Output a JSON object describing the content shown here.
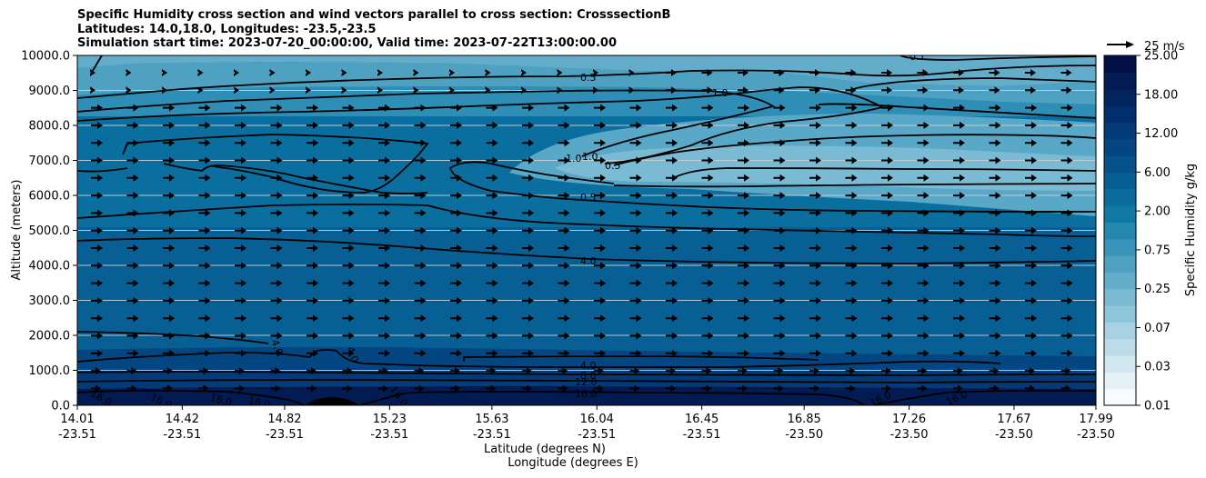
{
  "chart_data": {
    "type": "heatmap",
    "title_lines": [
      "Specific Humidity cross section and wind vectors parallel to cross section: CrosssectionB",
      "Latitudes: 14.0,18.0, Longitudes: -23.5,-23.5",
      "Simulation start time: 2023-07-20_00:00:00, Valid time: 2023-07-22T13:00:00.00"
    ],
    "ylabel": "Altitude (meters)",
    "xlabel_lines": [
      "Latitude (degrees N)",
      "Longitude (degrees E)"
    ],
    "ylim": [
      0,
      10000
    ],
    "y_ticks": [
      "0.0",
      "1000.0",
      "2000.0",
      "3000.0",
      "4000.0",
      "5000.0",
      "6000.0",
      "7000.0",
      "8000.0",
      "9000.0",
      "10000.0"
    ],
    "x_ticks": [
      {
        "lat": "14.01",
        "lon": "-23.51"
      },
      {
        "lat": "14.42",
        "lon": "-23.51"
      },
      {
        "lat": "14.82",
        "lon": "-23.51"
      },
      {
        "lat": "15.23",
        "lon": "-23.51"
      },
      {
        "lat": "15.63",
        "lon": "-23.51"
      },
      {
        "lat": "16.04",
        "lon": "-23.51"
      },
      {
        "lat": "16.45",
        "lon": "-23.51"
      },
      {
        "lat": "16.85",
        "lon": "-23.50"
      },
      {
        "lat": "17.26",
        "lon": "-23.50"
      },
      {
        "lat": "17.67",
        "lon": "-23.50"
      },
      {
        "lat": "17.99",
        "lon": "-23.50"
      }
    ],
    "grid": true,
    "colorbar": {
      "label": "Specific Humidity g/kg",
      "tick_labels": [
        "0.01",
        "0.03",
        "0.07",
        "0.25",
        "0.75",
        "2.00",
        "6.00",
        "12.00",
        "18.00",
        "25.00"
      ],
      "colors": [
        "#f7fbfd",
        "#e4f1f6",
        "#d0e7ef",
        "#bcdde8",
        "#a6d2e1",
        "#90c6da",
        "#7abad2",
        "#64adca",
        "#4ea1c1",
        "#3894b8",
        "#2487ae",
        "#0f7ba5",
        "#096c9c",
        "#065e93",
        "#05518a",
        "#044681",
        "#033b78",
        "#022f6c",
        "#022560",
        "#021b53",
        "#011147"
      ]
    },
    "quiver_key": "25 m/s",
    "contour_labels": [
      "0.1",
      "0.5",
      "1.0",
      "1.0",
      "1.0",
      "0.5",
      "0.5",
      "4.0",
      "4.0",
      "4.0",
      "4.0",
      "8.0",
      "12.0",
      "16.0",
      "16.0",
      "16.0",
      "16.0",
      "16.0",
      "16.0",
      "16.0",
      "16.0"
    ]
  }
}
